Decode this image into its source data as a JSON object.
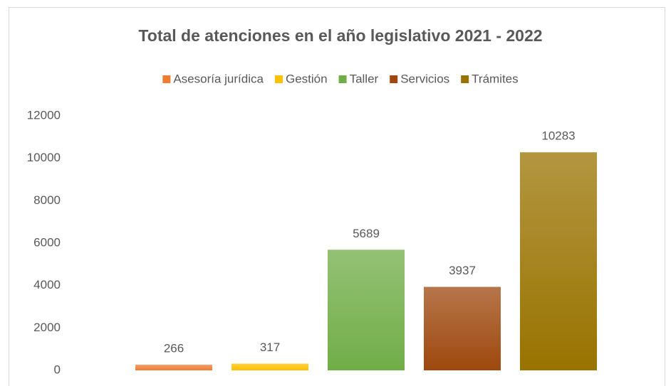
{
  "chart_data": {
    "type": "bar",
    "title": "Total de atenciones en el año legislativo 2021 - 2022",
    "categories": [
      null
    ],
    "series": [
      {
        "name": "Asesoría jurídica",
        "color": "#ed7d31",
        "values": [
          266
        ]
      },
      {
        "name": "Gestión",
        "color": "#ffc000",
        "values": [
          317
        ]
      },
      {
        "name": "Taller",
        "color": "#70ad47",
        "values": [
          5689
        ]
      },
      {
        "name": "Servicios",
        "color": "#9e480e",
        "values": [
          3937
        ]
      },
      {
        "name": "Trámites",
        "color": "#997300",
        "values": [
          10283
        ]
      }
    ],
    "ylim": [
      0,
      12000
    ],
    "yticks": [
      0,
      2000,
      4000,
      6000,
      8000,
      10000,
      12000
    ],
    "grid": false,
    "legend": "top"
  }
}
